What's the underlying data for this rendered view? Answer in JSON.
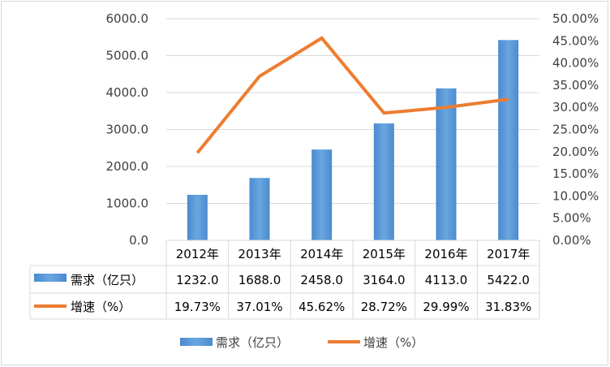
{
  "chart_data": {
    "type": "bar",
    "categories": [
      "2012年",
      "2013年",
      "2014年",
      "2015年",
      "2016年",
      "2017年"
    ],
    "series": [
      {
        "name": "需求（亿只）",
        "type": "bar",
        "axis": "left",
        "color": "#5b9bd5",
        "values": [
          1232.0,
          1688.0,
          2458.0,
          3164.0,
          4113.0,
          5422.0
        ],
        "labels": [
          "1232.0",
          "1688.0",
          "2458.0",
          "3164.0",
          "4113.0",
          "5422.0"
        ]
      },
      {
        "name": "增速（%）",
        "type": "line",
        "axis": "right",
        "color": "#ed7d31",
        "values": [
          19.73,
          37.01,
          45.62,
          28.72,
          29.99,
          31.83
        ],
        "labels": [
          "19.73%",
          "37.01%",
          "45.62%",
          "28.72%",
          "29.99%",
          "31.83%"
        ]
      }
    ],
    "y_left": {
      "min": 0,
      "max": 6000,
      "ticks": [
        "0.0",
        "1000.0",
        "2000.0",
        "3000.0",
        "4000.0",
        "5000.0",
        "6000.0"
      ]
    },
    "y_right": {
      "min": 0,
      "max": 50,
      "ticks": [
        "0.00%",
        "5.00%",
        "10.00%",
        "15.00%",
        "20.00%",
        "25.00%",
        "30.00%",
        "35.00%",
        "40.00%",
        "45.00%",
        "50.00%"
      ]
    },
    "grid": true,
    "data_table": true,
    "legend_position": "bottom"
  }
}
